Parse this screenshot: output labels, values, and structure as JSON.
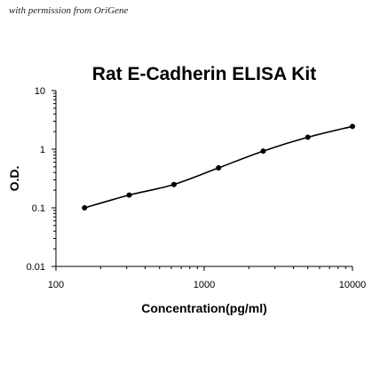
{
  "credit": "with permission from OriGene",
  "chart_data": {
    "type": "scatter",
    "title": "Rat E-Cadherin ELISA Kit",
    "xlabel": "Concentration(pg/ml)",
    "ylabel": "O.D.",
    "xscale": "log",
    "yscale": "log",
    "xlim": [
      100,
      10000
    ],
    "ylim": [
      0.01,
      10
    ],
    "xticks": [
      100,
      1000,
      10000
    ],
    "xtick_labels": [
      "100",
      "1000",
      "10000"
    ],
    "yticks": [
      0.01,
      0.1,
      1,
      10
    ],
    "ytick_labels": [
      "0.01",
      "0.1",
      "1",
      "10"
    ],
    "grid": false,
    "legend": "none",
    "series": [
      {
        "points": {
          "x": [
            156,
            312,
            625,
            1250,
            2500,
            5000,
            10000
          ],
          "y": [
            0.1,
            0.165,
            0.25,
            0.48,
            0.93,
            1.6,
            2.45
          ]
        },
        "fit_curve": true
      }
    ],
    "colors": {
      "marker": "#000000",
      "line": "#000000"
    }
  }
}
